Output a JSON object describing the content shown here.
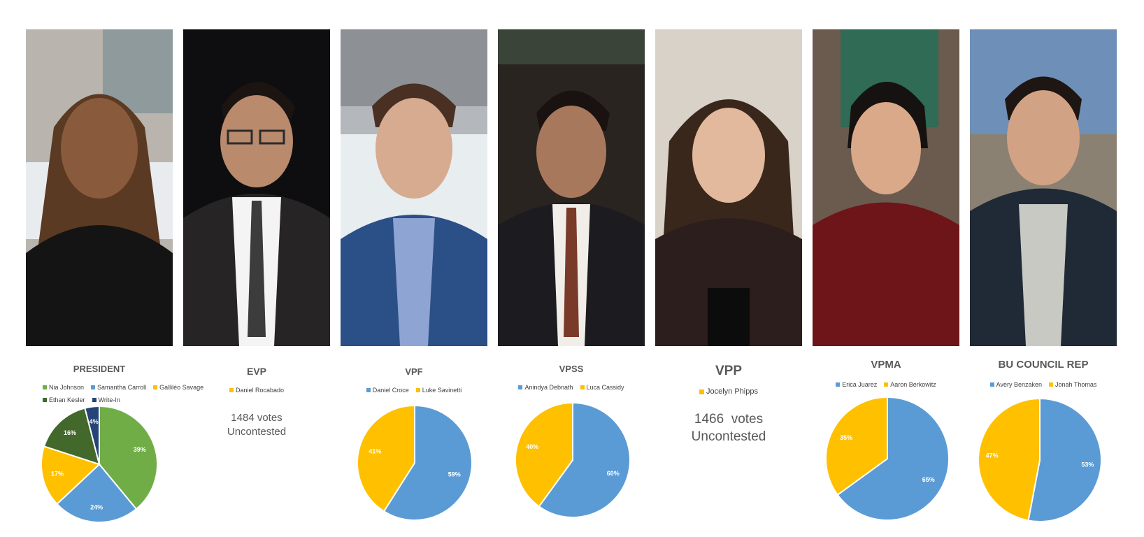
{
  "colors": {
    "green": "#70AD47",
    "blue": "#5B9BD5",
    "yellow": "#FFC000",
    "dark_green": "#43682B",
    "navy": "#264478"
  },
  "candidate_photos": [
    {
      "name": "Nia Johnson",
      "position": "PRESIDENT"
    },
    {
      "name": "Daniel Rocabado",
      "position": "EVP"
    },
    {
      "name": "Daniel Croce",
      "position": "VPF"
    },
    {
      "name": "Anindya Debnath",
      "position": "VPSS"
    },
    {
      "name": "Jocelyn Phipps",
      "position": "VPP"
    },
    {
      "name": "Erica Juarez",
      "position": "VPMA"
    },
    {
      "name": "Avery Benzaken",
      "position": "BU COUNCIL REP"
    }
  ],
  "chart_data": [
    {
      "type": "pie",
      "title": "PRESIDENT",
      "categories": [
        "Nia Johnson",
        "Samantha Carroll",
        "Galliléo Savage",
        "Ethan Kesler",
        "Write-In"
      ],
      "values": [
        39,
        24,
        17,
        16,
        4
      ],
      "labels": [
        "39%",
        "24%",
        "17%",
        "16%",
        "4%"
      ],
      "colors": [
        "#70AD47",
        "#5B9BD5",
        "#FFC000",
        "#43682B",
        "#264478"
      ],
      "legend": "top"
    },
    {
      "type": "table",
      "title": "EVP",
      "categories": [
        "Daniel Rocabado"
      ],
      "colors": [
        "#FFC000"
      ],
      "votes_text": "1484 votes",
      "status_text": "Uncontested",
      "legend": "top"
    },
    {
      "type": "pie",
      "title": "VPF",
      "categories": [
        "Daniel Croce",
        "Luke Savinetti"
      ],
      "values": [
        59,
        41
      ],
      "labels": [
        "59%",
        "41%"
      ],
      "colors": [
        "#5B9BD5",
        "#FFC000"
      ],
      "legend": "top"
    },
    {
      "type": "pie",
      "title": "VPSS",
      "categories": [
        "Anindya Debnath",
        "Luca Cassidy"
      ],
      "values": [
        60,
        40
      ],
      "labels": [
        "60%",
        "40%"
      ],
      "colors": [
        "#5B9BD5",
        "#FFC000"
      ],
      "legend": "top"
    },
    {
      "type": "table",
      "title": "VPP",
      "categories": [
        "Jocelyn Phipps"
      ],
      "colors": [
        "#FFC000"
      ],
      "votes_text": "1466  votes",
      "status_text": "Uncontested",
      "legend": "top"
    },
    {
      "type": "pie",
      "title": "VPMA",
      "categories": [
        "Erica Juarez",
        "Aaron Berkowitz"
      ],
      "values": [
        65,
        35
      ],
      "labels": [
        "65%",
        "35%"
      ],
      "colors": [
        "#5B9BD5",
        "#FFC000"
      ],
      "legend": "top"
    },
    {
      "type": "pie",
      "title": "BU COUNCIL REP",
      "categories": [
        "Avery Benzaken",
        "Jonah Thomas"
      ],
      "values": [
        53,
        47
      ],
      "labels": [
        "53%",
        "47%"
      ],
      "colors": [
        "#5B9BD5",
        "#FFC000"
      ],
      "legend": "top"
    }
  ]
}
